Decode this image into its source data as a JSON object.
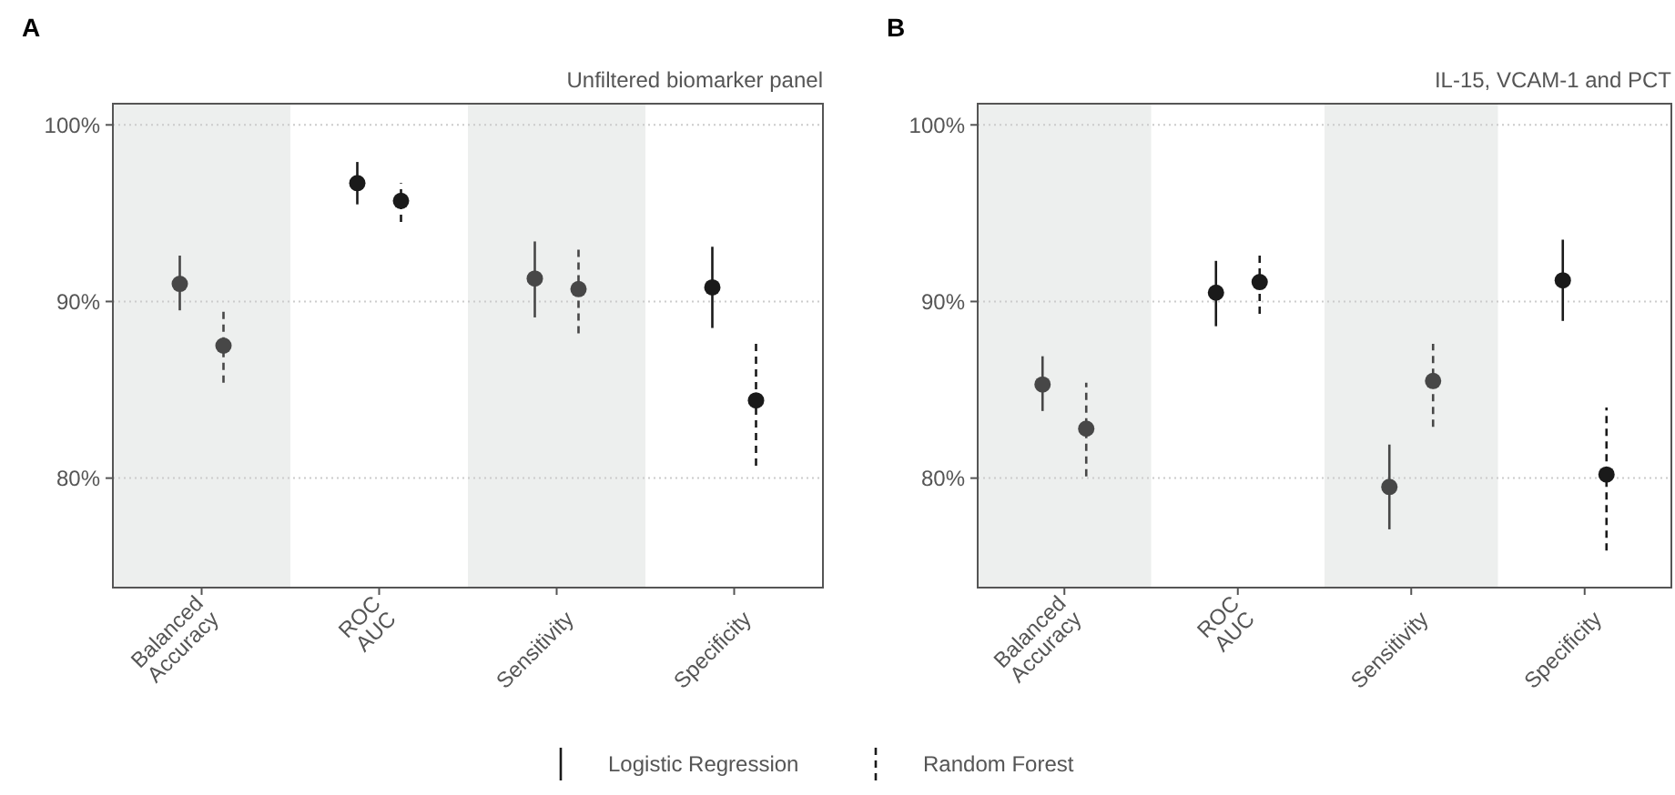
{
  "chart_data": [
    {
      "type": "scatter",
      "title": "A",
      "subtitle": "Unfiltered biomarker panel",
      "categories": [
        "Balanced\nAccuracy",
        "ROC\nAUC",
        "Sensitivity",
        "Specificity"
      ],
      "ylim": [
        73.8,
        101.2
      ],
      "yticks": [
        {
          "value": 80,
          "label": "80%"
        },
        {
          "value": 90,
          "label": "90%"
        },
        {
          "value": 100,
          "label": "100%"
        }
      ],
      "grid": "y",
      "marker": "circle",
      "legend": "bottom",
      "bands": [
        {
          "axis": "x",
          "from": "Balanced\nAccuracy",
          "to": "Balanced\nAccuracy",
          "color": "#edefee"
        },
        {
          "axis": "x",
          "from": "Sensitivity",
          "to": "Sensitivity",
          "color": "#edefee"
        }
      ],
      "series": [
        {
          "name": "Logistic Regression",
          "color": "#1a1a1a",
          "line_style": "solid",
          "colors": [
            "#474747",
            "#1a1a1a",
            "#474747",
            "#1a1a1a"
          ],
          "values": [
            91.0,
            96.7,
            91.3,
            90.8
          ],
          "errors": [
            [
              89.5,
              92.6
            ],
            [
              95.5,
              97.9
            ],
            [
              89.1,
              93.4
            ],
            [
              88.5,
              93.1
            ]
          ]
        },
        {
          "name": "Random Forest",
          "color": "#1a1a1a",
          "line_style": "dashed",
          "colors": [
            "#474747",
            "#1a1a1a",
            "#474747",
            "#1a1a1a"
          ],
          "values": [
            87.5,
            95.7,
            90.7,
            84.4
          ],
          "errors": [
            [
              85.4,
              89.7
            ],
            [
              94.5,
              96.7
            ],
            [
              88.2,
              93.0
            ],
            [
              80.7,
              87.9
            ]
          ]
        }
      ]
    },
    {
      "type": "scatter",
      "title": "B",
      "subtitle": "IL-15, VCAM-1 and PCT",
      "categories": [
        "Balanced\nAccuracy",
        "ROC\nAUC",
        "Sensitivity",
        "Specificity"
      ],
      "ylim": [
        73.8,
        101.2
      ],
      "yticks": [
        {
          "value": 80,
          "label": "80%"
        },
        {
          "value": 90,
          "label": "90%"
        },
        {
          "value": 100,
          "label": "100%"
        }
      ],
      "grid": "y",
      "marker": "circle",
      "bands": [
        {
          "axis": "x",
          "from": "Balanced\nAccuracy",
          "to": "Balanced\nAccuracy",
          "color": "#edefee"
        },
        {
          "axis": "x",
          "from": "Sensitivity",
          "to": "Sensitivity",
          "color": "#edefee"
        }
      ],
      "series": [
        {
          "line_style": "solid",
          "colors": [
            "#474747",
            "#1a1a1a",
            "#474747",
            "#1a1a1a"
          ],
          "values": [
            85.3,
            90.5,
            79.5,
            91.2
          ],
          "errors": [
            [
              83.8,
              86.9
            ],
            [
              88.6,
              92.3
            ],
            [
              77.1,
              81.9
            ],
            [
              88.9,
              93.5
            ]
          ]
        },
        {
          "line_style": "dashed",
          "colors": [
            "#474747",
            "#1a1a1a",
            "#474747",
            "#1a1a1a"
          ],
          "values": [
            82.8,
            91.1,
            85.5,
            80.2
          ],
          "errors": [
            [
              80.1,
              85.4
            ],
            [
              89.3,
              92.8
            ],
            [
              82.9,
              87.6
            ],
            [
              75.9,
              84.0
            ]
          ]
        }
      ]
    }
  ]
}
